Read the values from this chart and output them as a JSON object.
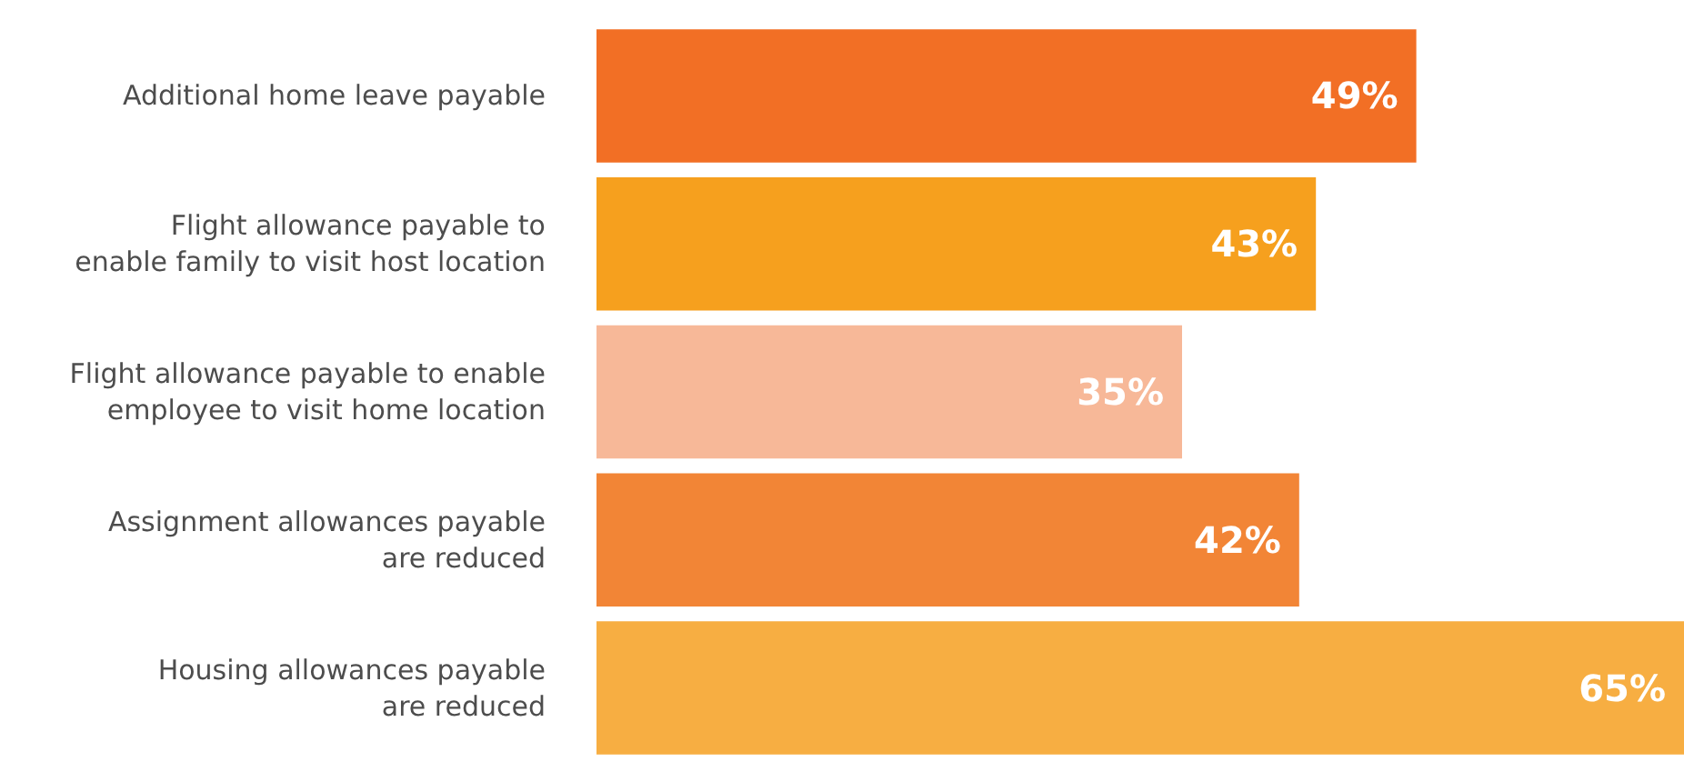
{
  "chart_data": {
    "type": "bar",
    "orientation": "horizontal",
    "categories": [
      "Additional home leave payable",
      "Flight allowance payable to\nenable family to visit host location",
      "Flight allowance payable to enable\nemployee to visit home location",
      "Assignment allowances payable\nare reduced",
      "Housing allowances payable\nare reduced"
    ],
    "values": [
      49,
      43,
      35,
      42,
      65
    ],
    "colors": [
      "#f26f25",
      "#f6a01e",
      "#f7b898",
      "#f28536",
      "#f7ae42"
    ],
    "value_labels": [
      "49%",
      "43%",
      "35%",
      "42%",
      "65%"
    ]
  }
}
